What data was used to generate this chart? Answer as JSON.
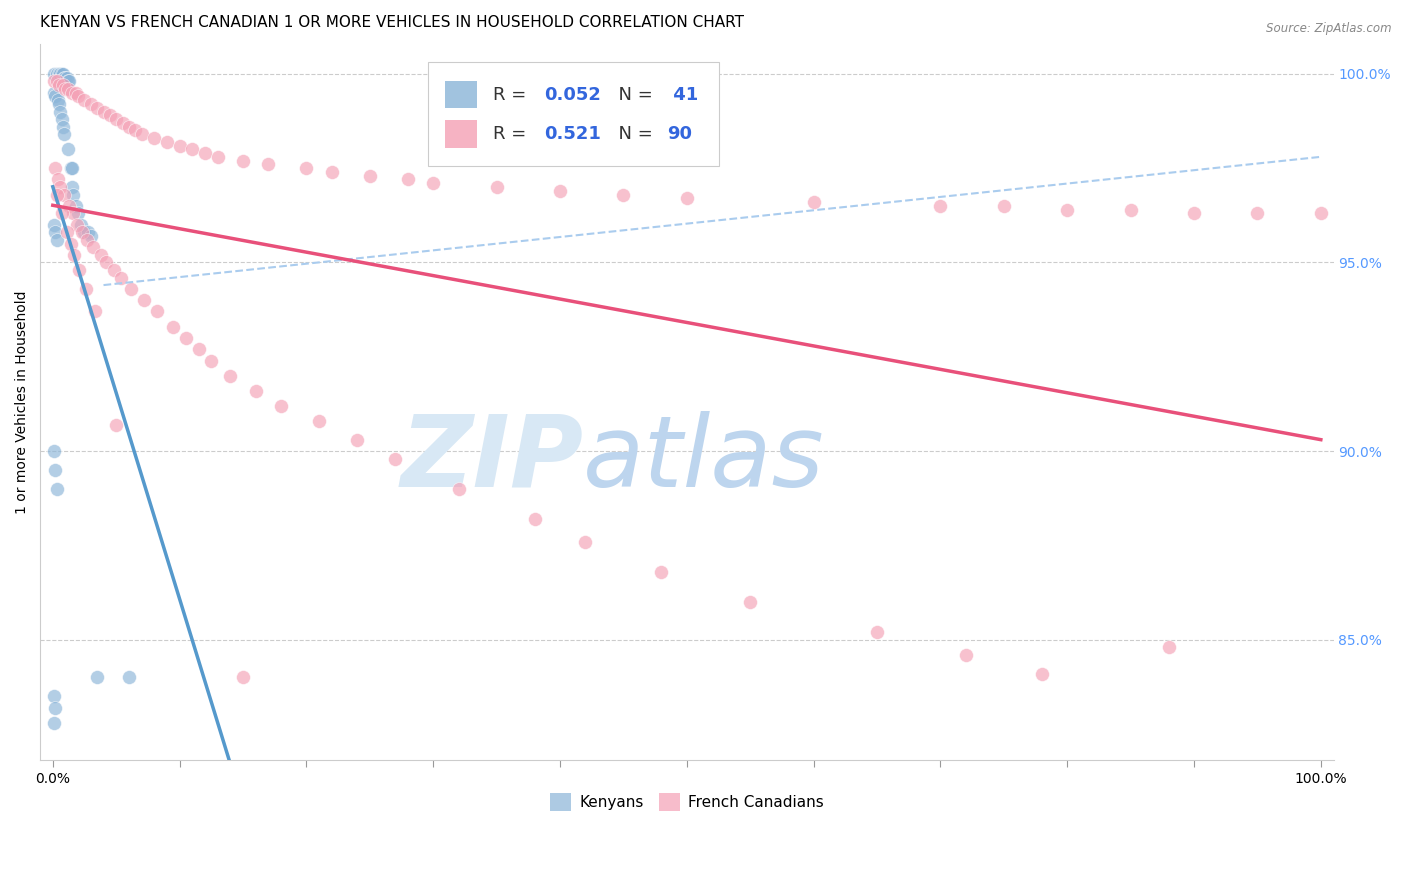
{
  "title": "KENYAN VS FRENCH CANADIAN 1 OR MORE VEHICLES IN HOUSEHOLD CORRELATION CHART",
  "source": "Source: ZipAtlas.com",
  "ylabel": "1 or more Vehicles in Household",
  "legend_label1": "Kenyans",
  "legend_label2": "French Canadians",
  "R_kenyan": 0.052,
  "N_kenyan": 41,
  "R_french": 0.521,
  "N_french": 90,
  "kenyan_color": "#8ab4d8",
  "french_color": "#f4a0b5",
  "kenyan_line_color": "#5599cc",
  "french_line_color": "#e8507a",
  "dash_line_color": "#aaccee",
  "background_color": "#ffffff",
  "title_fontsize": 11,
  "axis_label_fontsize": 10,
  "tick_fontsize": 10,
  "right_tick_color": "#5599ff",
  "ylim_low": 0.818,
  "ylim_high": 1.008,
  "kenyan_x": [
    0.001,
    0.003,
    0.005,
    0.006,
    0.007,
    0.008,
    0.009,
    0.01,
    0.011,
    0.012,
    0.013,
    0.014,
    0.015,
    0.016,
    0.018,
    0.02,
    0.022,
    0.025,
    0.028,
    0.03,
    0.001,
    0.002,
    0.004,
    0.005,
    0.006,
    0.007,
    0.008,
    0.009,
    0.012,
    0.015,
    0.001,
    0.002,
    0.003,
    0.035,
    0.06,
    0.001,
    0.002,
    0.003,
    0.001,
    0.002,
    0.001
  ],
  "kenyan_y": [
    1.0,
    1.0,
    1.0,
    1.0,
    1.0,
    1.0,
    0.999,
    0.999,
    0.999,
    0.998,
    0.998,
    0.975,
    0.97,
    0.968,
    0.965,
    0.963,
    0.96,
    0.958,
    0.958,
    0.957,
    0.995,
    0.994,
    0.993,
    0.992,
    0.99,
    0.988,
    0.986,
    0.984,
    0.98,
    0.975,
    0.9,
    0.895,
    0.89,
    0.84,
    0.84,
    0.96,
    0.958,
    0.956,
    0.835,
    0.832,
    0.828
  ],
  "french_x": [
    0.001,
    0.003,
    0.005,
    0.008,
    0.01,
    0.012,
    0.015,
    0.018,
    0.02,
    0.025,
    0.03,
    0.035,
    0.04,
    0.045,
    0.05,
    0.055,
    0.06,
    0.065,
    0.07,
    0.08,
    0.09,
    0.1,
    0.11,
    0.12,
    0.13,
    0.15,
    0.17,
    0.2,
    0.22,
    0.25,
    0.28,
    0.3,
    0.35,
    0.4,
    0.45,
    0.5,
    0.6,
    0.7,
    0.75,
    0.8,
    0.85,
    0.9,
    0.95,
    1.0,
    0.002,
    0.004,
    0.006,
    0.009,
    0.013,
    0.016,
    0.019,
    0.023,
    0.027,
    0.032,
    0.038,
    0.042,
    0.048,
    0.054,
    0.062,
    0.072,
    0.082,
    0.095,
    0.105,
    0.115,
    0.125,
    0.14,
    0.16,
    0.18,
    0.21,
    0.24,
    0.27,
    0.32,
    0.38,
    0.42,
    0.48,
    0.55,
    0.65,
    0.72,
    0.78,
    0.88,
    0.003,
    0.007,
    0.011,
    0.014,
    0.017,
    0.021,
    0.026,
    0.033,
    0.05,
    0.15
  ],
  "french_y": [
    0.998,
    0.998,
    0.997,
    0.997,
    0.996,
    0.996,
    0.995,
    0.995,
    0.994,
    0.993,
    0.992,
    0.991,
    0.99,
    0.989,
    0.988,
    0.987,
    0.986,
    0.985,
    0.984,
    0.983,
    0.982,
    0.981,
    0.98,
    0.979,
    0.978,
    0.977,
    0.976,
    0.975,
    0.974,
    0.973,
    0.972,
    0.971,
    0.97,
    0.969,
    0.968,
    0.967,
    0.966,
    0.965,
    0.965,
    0.964,
    0.964,
    0.963,
    0.963,
    0.963,
    0.975,
    0.972,
    0.97,
    0.968,
    0.965,
    0.963,
    0.96,
    0.958,
    0.956,
    0.954,
    0.952,
    0.95,
    0.948,
    0.946,
    0.943,
    0.94,
    0.937,
    0.933,
    0.93,
    0.927,
    0.924,
    0.92,
    0.916,
    0.912,
    0.908,
    0.903,
    0.898,
    0.89,
    0.882,
    0.876,
    0.868,
    0.86,
    0.852,
    0.846,
    0.841,
    0.848,
    0.968,
    0.963,
    0.958,
    0.955,
    0.952,
    0.948,
    0.943,
    0.937,
    0.907,
    0.84
  ]
}
